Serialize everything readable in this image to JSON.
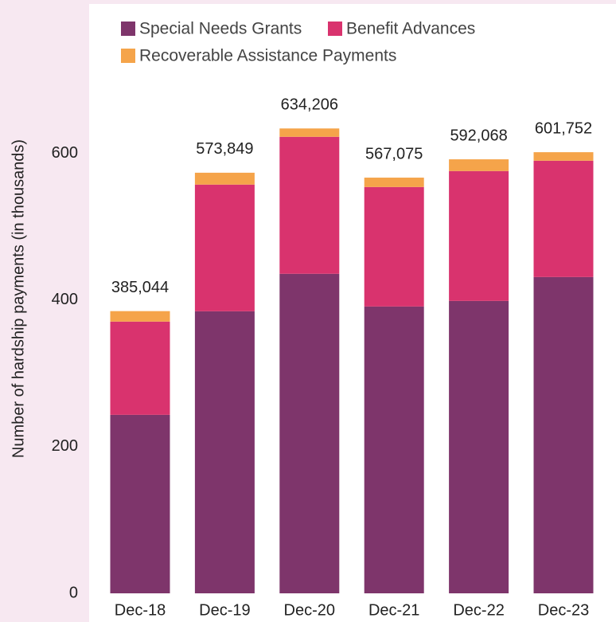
{
  "chart_data": {
    "type": "stacked_bar",
    "y_axis_label": "Number of hardship payments (in thousands)",
    "categories": [
      "Dec-18",
      "Dec-19",
      "Dec-20",
      "Dec-21",
      "Dec-22",
      "Dec-23"
    ],
    "series": [
      {
        "name": "Special Needs Grants",
        "color": "#7e356b",
        "values": [
          243.5,
          384.8,
          435.9,
          391.3,
          398.9,
          431.5
        ]
      },
      {
        "name": "Benefit Advances",
        "color": "#d9336e",
        "values": [
          127.2,
          172.8,
          186.9,
          163.0,
          177.2,
          158.7
        ]
      },
      {
        "name": "Recoverable Assistance Payments",
        "color": "#f5a44a",
        "values": [
          14.3,
          16.2,
          11.4,
          12.8,
          16.0,
          11.6
        ]
      }
    ],
    "totals": {
      "values": [
        385.044,
        573.849,
        634.206,
        567.075,
        592.068,
        601.752
      ],
      "value_labels": [
        "385,044",
        "573,849",
        "634,206",
        "567,075",
        "592,068",
        "601,752"
      ]
    },
    "ylim": [
      0,
      804
    ],
    "yticks": [
      0,
      200,
      400,
      600
    ]
  }
}
